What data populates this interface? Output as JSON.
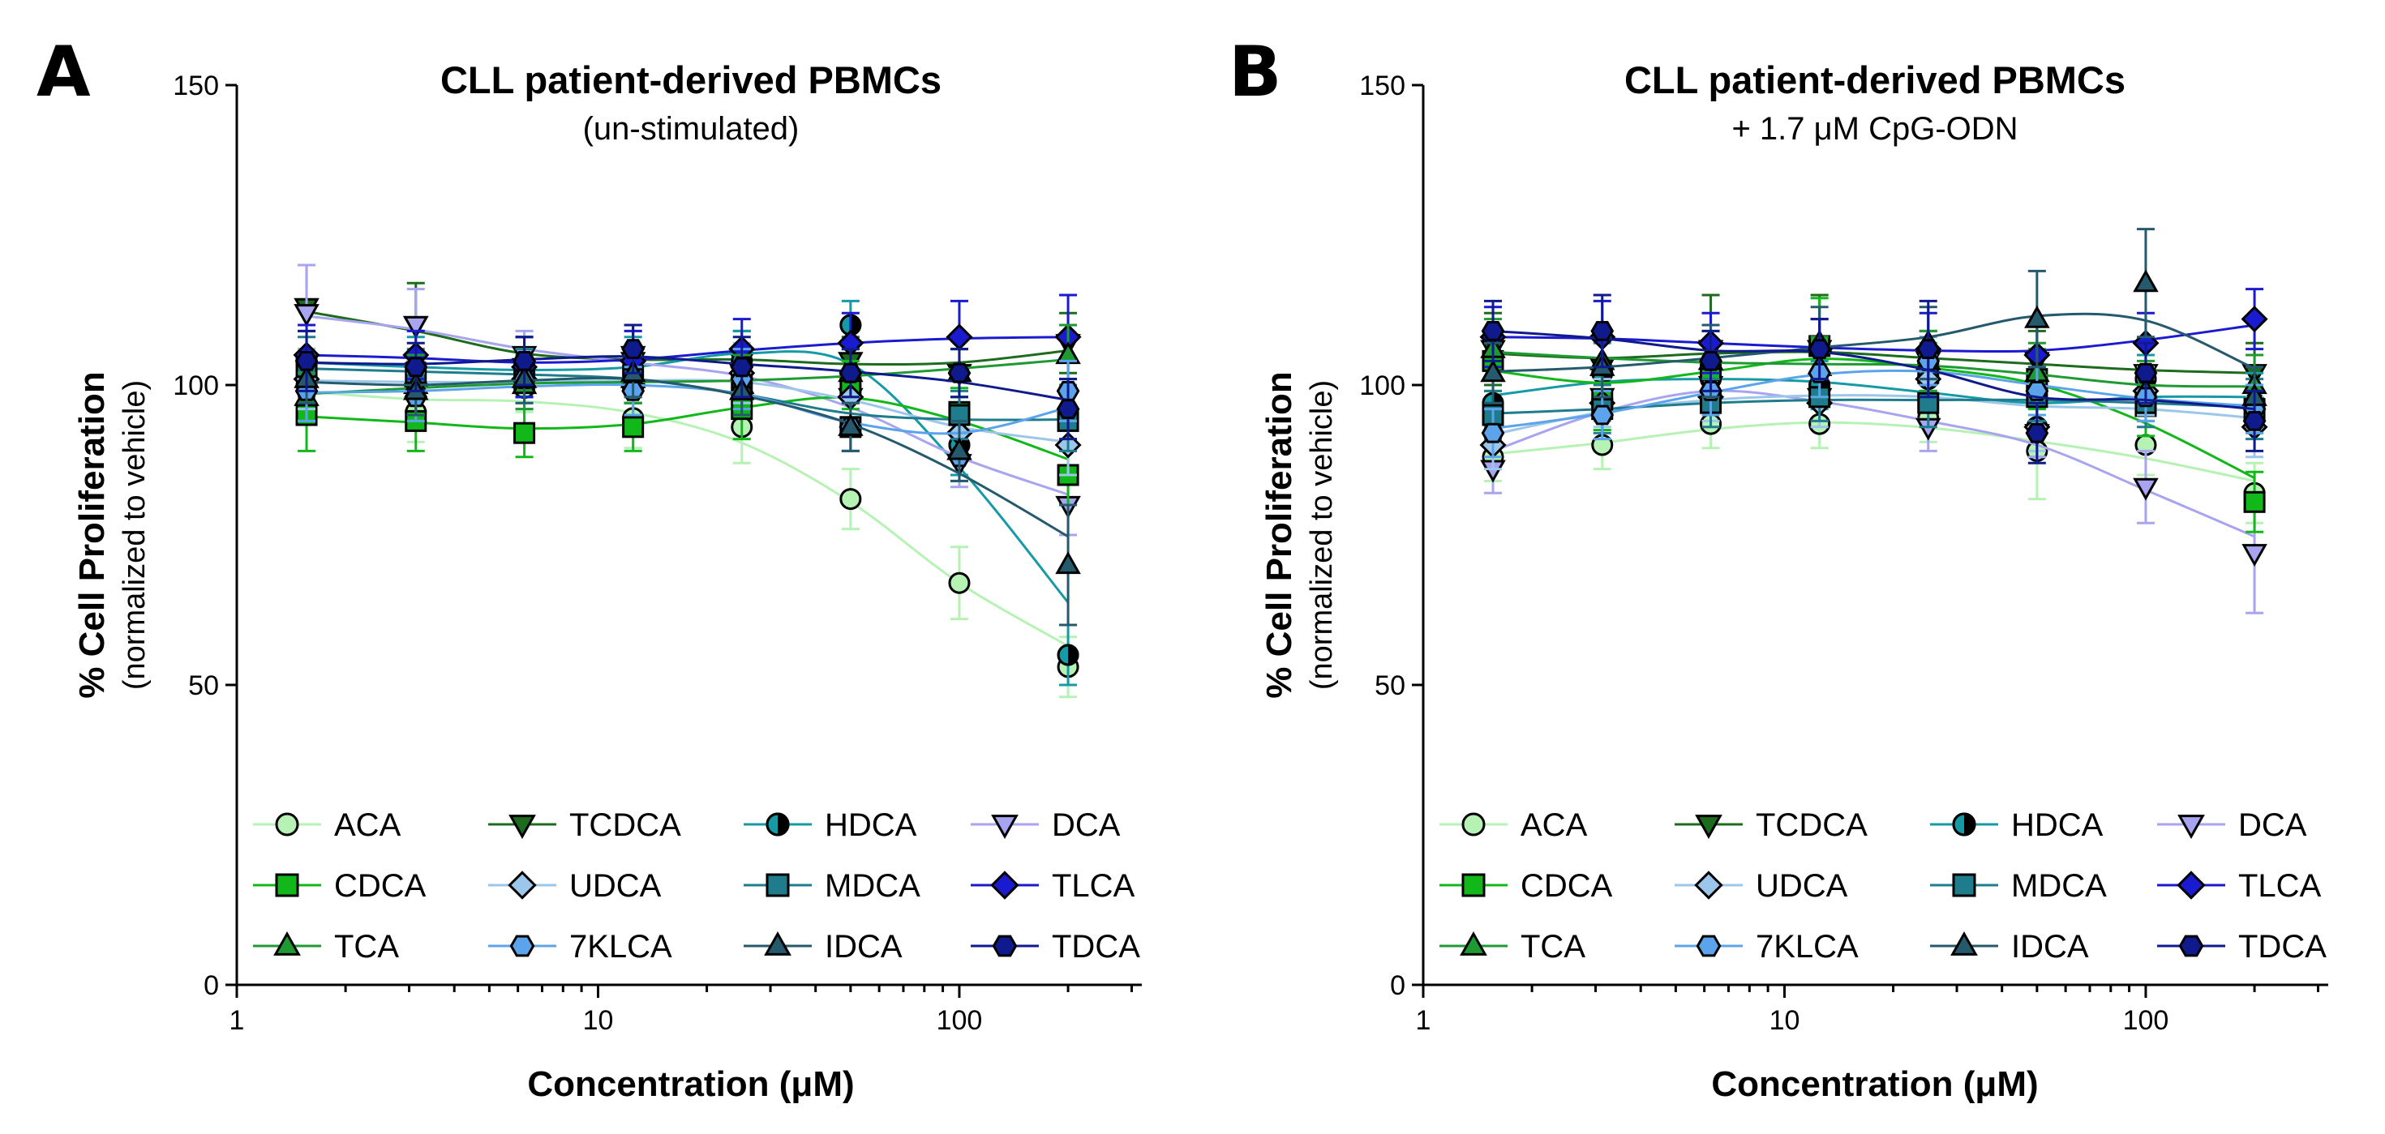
{
  "chart_data": [
    {
      "type": "scatter",
      "panel": "A",
      "title": "CLL patient-derived PBMCs",
      "subtitle": "(un-stimulated)",
      "ylabel": "% Cell Proliferation",
      "ylabel_sub": "(normalized to vehicle)",
      "xlabel": "Concentration (μM)",
      "xscale": "log",
      "xlim": [
        1,
        320
      ],
      "ylim": [
        0,
        150
      ],
      "xticks": [
        1,
        10,
        100
      ],
      "xtick_labels": [
        "1",
        "10",
        "100"
      ],
      "yticks": [
        0,
        50,
        100,
        150
      ],
      "ytick_labels": [
        "0",
        "50",
        "100",
        "150"
      ],
      "x": [
        1.56,
        3.13,
        6.25,
        12.5,
        25,
        50,
        100,
        200
      ],
      "legend_position": "bottom",
      "series": [
        {
          "name": "ACA",
          "values": [
            100,
            95.5,
            99.5,
            94.5,
            93,
            81,
            67,
            53
          ],
          "err": [
            5,
            5,
            4,
            5,
            6,
            5,
            6,
            5
          ]
        },
        {
          "name": "TCDCA",
          "values": [
            113,
            110,
            103,
            105,
            104,
            104,
            102,
            107
          ],
          "err": [
            7,
            7,
            5,
            5,
            5,
            4,
            4,
            5
          ]
        },
        {
          "name": "HDCA",
          "values": [
            104,
            103,
            102,
            103,
            104,
            110,
            90,
            55
          ],
          "err": [
            5,
            5,
            4,
            5,
            5,
            4,
            5,
            5
          ]
        },
        {
          "name": "DCA",
          "values": [
            112,
            110,
            105,
            104,
            102,
            98,
            87,
            80
          ],
          "err": [
            8,
            6,
            4,
            5,
            4,
            4,
            4,
            5
          ]
        },
        {
          "name": "CDCA",
          "values": [
            95,
            94,
            92,
            93,
            96,
            100,
            95.5,
            85
          ],
          "err": [
            6,
            5,
            4,
            4,
            5,
            4,
            4,
            5
          ]
        },
        {
          "name": "UDCA",
          "values": [
            101,
            100,
            101,
            100,
            102,
            98,
            92,
            90
          ],
          "err": [
            5,
            5,
            5,
            5,
            5,
            4,
            4,
            5
          ]
        },
        {
          "name": "MDCA",
          "values": [
            103,
            102,
            102,
            101,
            100,
            93,
            95,
            94
          ],
          "err": [
            5,
            4,
            4,
            4,
            5,
            4,
            4,
            5
          ]
        },
        {
          "name": "TLCA",
          "values": [
            105,
            105,
            103,
            104,
            106,
            107,
            108,
            108
          ],
          "err": [
            5,
            4,
            5,
            5,
            5,
            5,
            6,
            7
          ]
        },
        {
          "name": "TCA",
          "values": [
            98,
            100,
            100,
            101,
            100,
            102,
            102,
            105
          ],
          "err": [
            4,
            5,
            4,
            4,
            5,
            4,
            4,
            5
          ]
        },
        {
          "name": "7KLCA",
          "values": [
            99,
            98,
            101,
            99,
            101,
            93,
            88,
            99
          ],
          "err": [
            5,
            4,
            4,
            4,
            5,
            4,
            4,
            5
          ]
        },
        {
          "name": "IDCA",
          "values": [
            101,
            99,
            101,
            102,
            99,
            93,
            89,
            70
          ],
          "err": [
            4,
            4,
            4,
            4,
            4,
            4,
            5,
            10
          ]
        },
        {
          "name": "TDCA",
          "values": [
            104,
            103,
            104,
            106,
            103,
            102,
            102,
            96
          ],
          "err": [
            5,
            4,
            4,
            4,
            5,
            4,
            4,
            5
          ]
        }
      ]
    },
    {
      "type": "scatter",
      "panel": "B",
      "title": "CLL patient-derived PBMCs",
      "subtitle": "+ 1.7 μM CpG-ODN",
      "ylabel": "% Cell Proliferation",
      "ylabel_sub": "(normalized to vehicle)",
      "xlabel": "Concentration (μM)",
      "xscale": "log",
      "xlim": [
        1,
        320
      ],
      "ylim": [
        0,
        150
      ],
      "xticks": [
        1,
        10,
        100
      ],
      "xtick_labels": [
        "1",
        "10",
        "100"
      ],
      "yticks": [
        0,
        50,
        100,
        150
      ],
      "ytick_labels": [
        "0",
        "50",
        "100",
        "150"
      ],
      "x": [
        1.56,
        3.13,
        6.25,
        12.5,
        25,
        50,
        100,
        200
      ],
      "legend_position": "bottom",
      "series": [
        {
          "name": "ACA",
          "values": [
            88,
            90,
            93.5,
            93.5,
            94.5,
            89,
            90,
            82
          ],
          "err": [
            4,
            4,
            4,
            4,
            4,
            8,
            5,
            5
          ]
        },
        {
          "name": "TCDCA",
          "values": [
            106,
            103,
            106,
            106,
            104,
            104,
            102,
            102
          ],
          "err": [
            6,
            6,
            9,
            9,
            5,
            5,
            5,
            5
          ]
        },
        {
          "name": "HDCA",
          "values": [
            97,
            102,
            101,
            100,
            101,
            93,
            101,
            97
          ],
          "err": [
            4,
            5,
            4,
            4,
            4,
            5,
            4,
            5
          ]
        },
        {
          "name": "DCA",
          "values": [
            86,
            98,
            100,
            98,
            93,
            92,
            83,
            72
          ],
          "err": [
            4,
            4,
            4,
            4,
            4,
            4,
            6,
            10
          ]
        },
        {
          "name": "CDCA",
          "values": [
            104,
            97.5,
            102.5,
            106.5,
            102,
            101,
            96.5,
            80.5
          ],
          "err": [
            5,
            5,
            5,
            8,
            5,
            5,
            5,
            5
          ]
        },
        {
          "name": "UDCA",
          "values": [
            90,
            97,
            98,
            97,
            101,
            93,
            99,
            93
          ],
          "err": [
            4,
            4,
            4,
            4,
            4,
            4,
            4,
            5
          ]
        },
        {
          "name": "MDCA",
          "values": [
            95,
            96,
            97,
            98,
            97,
            98,
            97,
            96
          ],
          "err": [
            4,
            4,
            4,
            4,
            4,
            4,
            4,
            5
          ]
        },
        {
          "name": "TLCA",
          "values": [
            108,
            108,
            107,
            106,
            106,
            105,
            107,
            111
          ],
          "err": [
            5,
            6,
            5,
            5,
            6,
            5,
            5,
            5
          ]
        },
        {
          "name": "TCA",
          "values": [
            106,
            104,
            104,
            103,
            104,
            102,
            99,
            100
          ],
          "err": [
            5,
            5,
            5,
            5,
            5,
            5,
            5,
            5
          ]
        },
        {
          "name": "7KLCA",
          "values": [
            92,
            95,
            99,
            102,
            104,
            99,
            98,
            96
          ],
          "err": [
            4,
            4,
            4,
            4,
            4,
            4,
            4,
            4
          ]
        },
        {
          "name": "IDCA",
          "values": [
            102,
            103,
            104,
            107,
            107,
            111,
            117,
            98
          ],
          "err": [
            5,
            5,
            6,
            6,
            6,
            8,
            9,
            5
          ]
        },
        {
          "name": "TDCA",
          "values": [
            109,
            109,
            104,
            106,
            106,
            92,
            102,
            94
          ],
          "err": [
            5,
            6,
            5,
            5,
            8,
            5,
            5,
            5
          ]
        }
      ]
    }
  ],
  "legend_items": [
    {
      "name": "ACA",
      "color": "#b6f2b4",
      "marker": "circle"
    },
    {
      "name": "TCDCA",
      "color": "#1d6b1d",
      "marker": "triangle-down"
    },
    {
      "name": "HDCA",
      "color": "#159aa6",
      "marker": "half-circle"
    },
    {
      "name": "DCA",
      "color": "#a8a4f0",
      "marker": "triangle-down"
    },
    {
      "name": "CDCA",
      "color": "#12b81a",
      "marker": "square"
    },
    {
      "name": "UDCA",
      "color": "#9cc6ea",
      "marker": "diamond"
    },
    {
      "name": "MDCA",
      "color": "#1e7c8c",
      "marker": "square"
    },
    {
      "name": "TLCA",
      "color": "#1a1ad0",
      "marker": "diamond"
    },
    {
      "name": "TCA",
      "color": "#1f9a33",
      "marker": "triangle-up"
    },
    {
      "name": "7KLCA",
      "color": "#5ba4ec",
      "marker": "hexagon"
    },
    {
      "name": "IDCA",
      "color": "#245a6c",
      "marker": "triangle-up"
    },
    {
      "name": "TDCA",
      "color": "#0f1a8c",
      "marker": "hexagon"
    }
  ]
}
